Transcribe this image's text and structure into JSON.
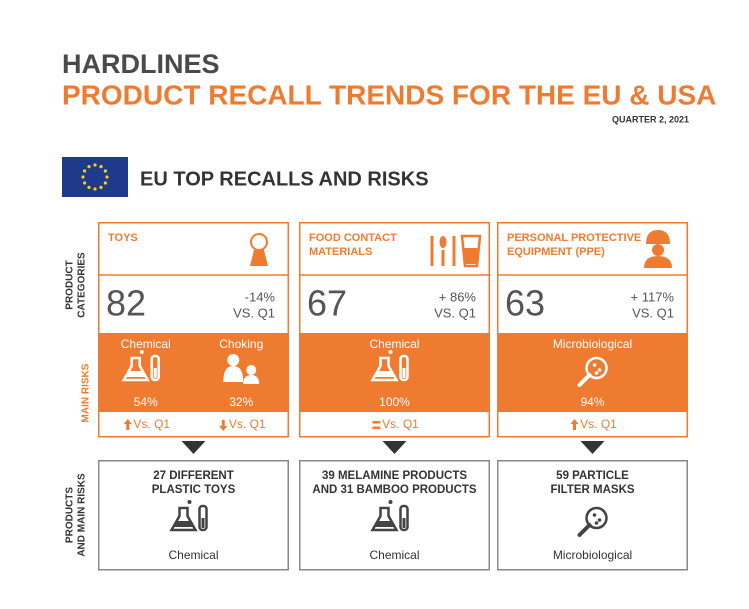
{
  "header": {
    "title": "HARDLINES",
    "subtitle": "PRODUCT RECALL TRENDS FOR THE EU & USA",
    "period": "QUARTER 2, 2021"
  },
  "section": {
    "title": "EU TOP RECALLS AND RISKS"
  },
  "row_labels": {
    "categories": [
      "PRODUCT",
      "CATEGORIES"
    ],
    "risks": "MAIN RISKS",
    "products": [
      "PRODUCTS",
      "AND MAIN RISKS"
    ]
  },
  "columns": [
    {
      "category": [
        "TOYS"
      ],
      "icon": "toy",
      "count": "82",
      "change": "-14%",
      "vs": "VS. Q1",
      "risks": [
        {
          "name": "Chemical",
          "icon": "chemical",
          "pct": "54%",
          "trend": "up",
          "trend_label": "Vs. Q1"
        },
        {
          "name": "Choking",
          "icon": "choking",
          "pct": "32%",
          "trend": "down",
          "trend_label": "Vs. Q1"
        }
      ],
      "products": [
        "27 DIFFERENT",
        "PLASTIC TOYS"
      ],
      "product_risk": "Chemical",
      "product_icon": "chemical"
    },
    {
      "category": [
        "FOOD CONTACT",
        "MATERIALS"
      ],
      "icon": "food",
      "count": "67",
      "change": "+ 86%",
      "vs": "VS. Q1",
      "risks": [
        {
          "name": "Chemical",
          "icon": "chemical",
          "pct": "100%",
          "trend": "equal",
          "trend_label": "Vs. Q1"
        }
      ],
      "products": [
        "39 MELAMINE PRODUCTS",
        "AND 31 BAMBOO PRODUCTS"
      ],
      "product_risk": "Chemical",
      "product_icon": "chemical"
    },
    {
      "category": [
        "PERSONAL PROTECTIVE",
        "EQUIPMENT (PPE)"
      ],
      "icon": "worker",
      "count": "63",
      "change": "+ 117%",
      "vs": "VS. Q1",
      "risks": [
        {
          "name": "Microbiological",
          "icon": "micro",
          "pct": "94%",
          "trend": "up",
          "trend_label": "Vs. Q1"
        }
      ],
      "products": [
        "59 PARTICLE",
        "FILTER MASKS"
      ],
      "product_risk": "Microbiological",
      "product_icon": "micro"
    }
  ]
}
